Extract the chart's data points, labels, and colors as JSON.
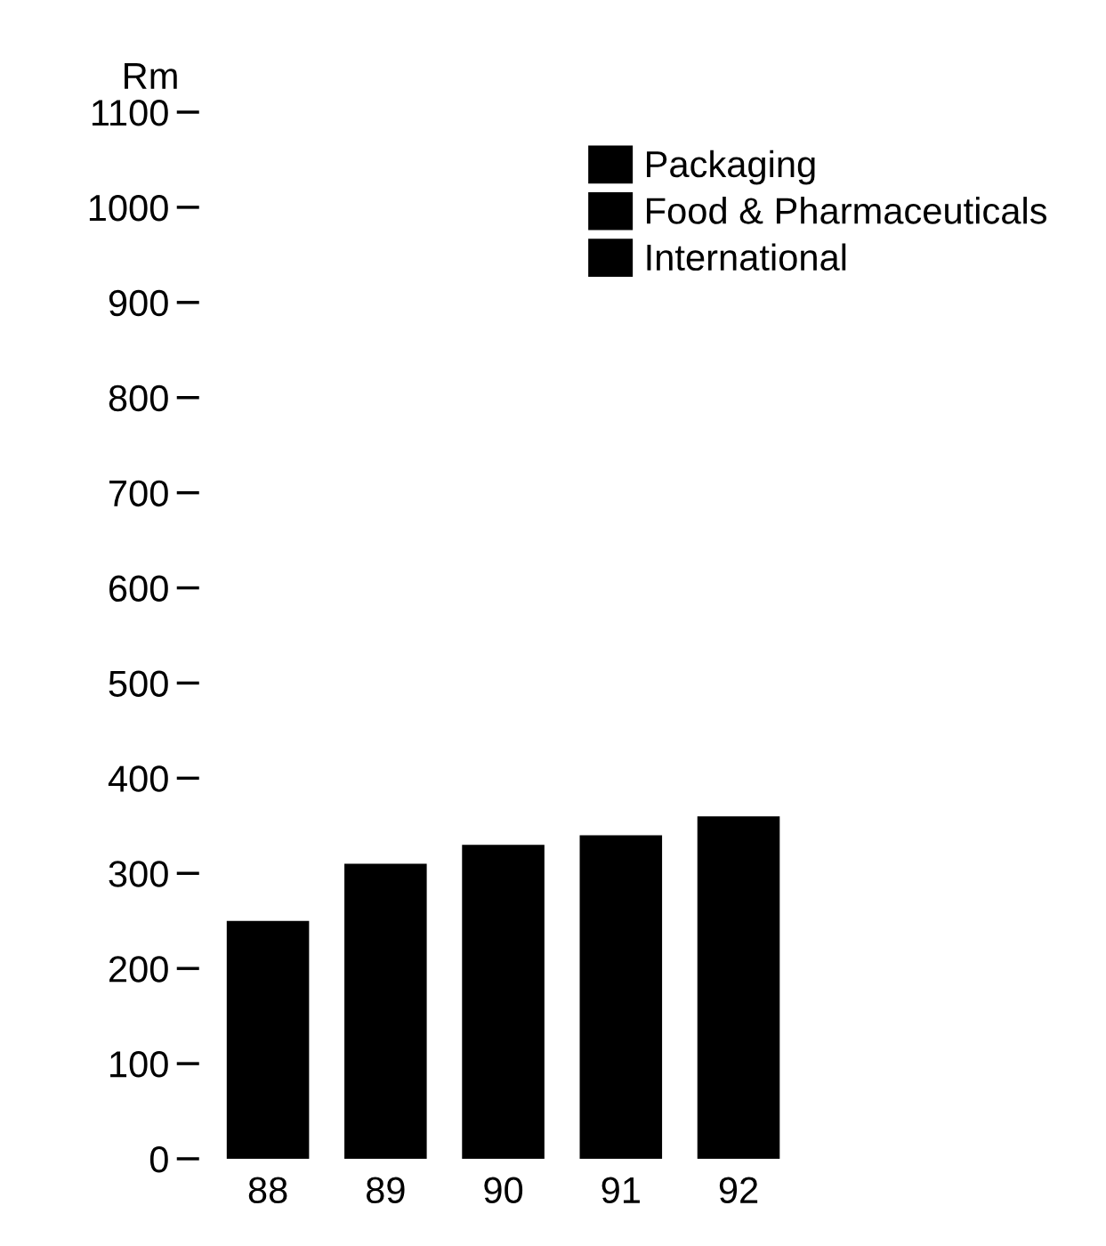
{
  "chart_data": {
    "type": "bar",
    "ylabel": "Rm",
    "categories": [
      "88",
      "89",
      "90",
      "91",
      "92"
    ],
    "series": [
      {
        "name": "Packaging",
        "color": "#000000",
        "values": [
          250,
          310,
          330,
          340,
          360
        ]
      },
      {
        "name": "Food & Pharmaceuticals",
        "color": "#000000",
        "values": [
          null,
          null,
          null,
          null,
          null
        ]
      },
      {
        "name": "International",
        "color": "#000000",
        "values": [
          null,
          null,
          null,
          null,
          null
        ]
      }
    ],
    "ylim": [
      0,
      1100
    ],
    "yticks": [
      0,
      100,
      200,
      300,
      400,
      500,
      600,
      700,
      800,
      900,
      1000,
      1100
    ],
    "grid": false,
    "legend": "top right"
  }
}
